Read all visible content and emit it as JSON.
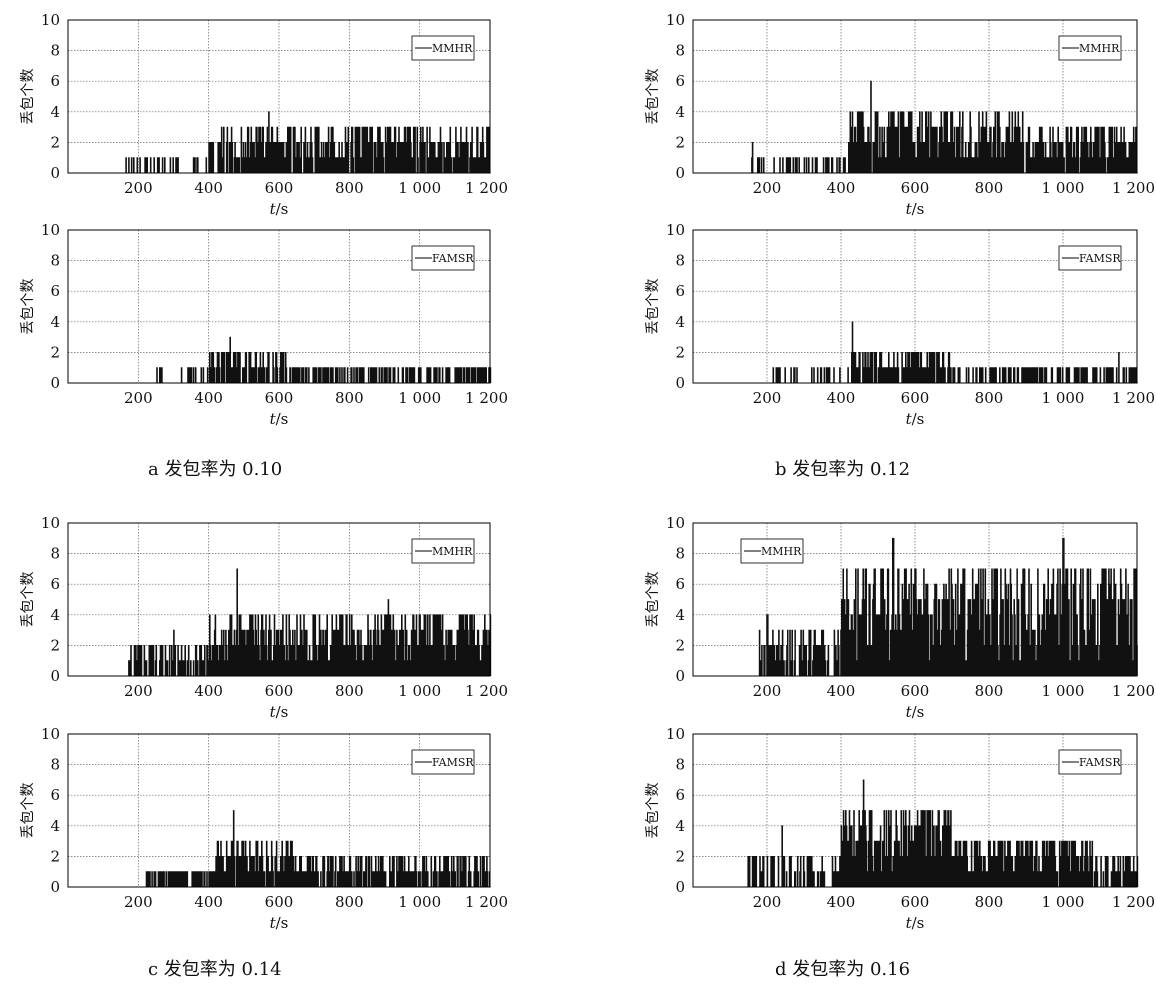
{
  "figure": {
    "captions": [
      "a 发包率为 0.10",
      "b 发包率为 0.12",
      "c 发包率为 0.14",
      "d 发包率为 0.16"
    ]
  },
  "chart_data": [
    {
      "type": "line",
      "panel": "a",
      "series": [
        {
          "name": "MMHR",
          "x_start": 150,
          "x_end": 1200
        }
      ],
      "xlabel": "t/s",
      "ylabel": "丢包个数",
      "ylim": [
        0,
        10
      ],
      "xlim": [
        0,
        1200
      ],
      "xticks": [
        "200",
        "400",
        "600",
        "800",
        "1 000",
        "1 200"
      ],
      "yticks": [
        "0",
        "2",
        "4",
        "6",
        "8",
        "10"
      ],
      "grid": true,
      "legend_position": "top-right",
      "segments": [
        {
          "from": 150,
          "to": 400,
          "density": 0.2,
          "max": 1,
          "peak_at": null
        },
        {
          "from": 400,
          "to": 700,
          "density": 0.75,
          "max": 3,
          "peak_at": 570,
          "peak": 4
        },
        {
          "from": 700,
          "to": 1200,
          "density": 0.75,
          "max": 3,
          "peak_at": null
        }
      ]
    },
    {
      "type": "line",
      "panel": "a",
      "series": [
        {
          "name": "FAMSR",
          "x_start": 250,
          "x_end": 1200
        }
      ],
      "xlabel": "t/s",
      "ylabel": "丢包个数",
      "ylim": [
        0,
        10
      ],
      "xlim": [
        0,
        1200
      ],
      "xticks": [
        "200",
        "400",
        "600",
        "800",
        "1 000",
        "1 200"
      ],
      "yticks": [
        "0",
        "2",
        "4",
        "6",
        "8",
        "10"
      ],
      "grid": true,
      "legend_position": "top-right",
      "segments": [
        {
          "from": 250,
          "to": 400,
          "density": 0.25,
          "max": 1,
          "peak_at": null
        },
        {
          "from": 400,
          "to": 620,
          "density": 0.6,
          "max": 2,
          "peak_at": 460,
          "peak": 3
        },
        {
          "from": 620,
          "to": 1200,
          "density": 0.45,
          "max": 1,
          "peak_at": null
        }
      ]
    },
    {
      "type": "line",
      "panel": "b",
      "series": [
        {
          "name": "MMHR",
          "x_start": 150,
          "x_end": 1200
        }
      ],
      "xlabel": "t/s",
      "ylabel": "丢包个数",
      "ylim": [
        0,
        10
      ],
      "xlim": [
        0,
        1200
      ],
      "xticks": [
        "200",
        "400",
        "600",
        "800",
        "1 000",
        "1 200"
      ],
      "yticks": [
        "0",
        "2",
        "4",
        "6",
        "8",
        "10"
      ],
      "grid": true,
      "legend_position": "top-right",
      "segments": [
        {
          "from": 150,
          "to": 420,
          "density": 0.3,
          "max": 1,
          "peak_at": 160,
          "peak": 2
        },
        {
          "from": 420,
          "to": 900,
          "density": 0.9,
          "max": 4,
          "peak_at": 480,
          "peak": 6
        },
        {
          "from": 900,
          "to": 1200,
          "density": 0.85,
          "max": 3,
          "peak_at": null
        }
      ]
    },
    {
      "type": "line",
      "panel": "b",
      "series": [
        {
          "name": "FAMSR",
          "x_start": 210,
          "x_end": 1200
        }
      ],
      "xlabel": "t/s",
      "ylabel": "丢包个数",
      "ylim": [
        0,
        10
      ],
      "xlim": [
        0,
        1200
      ],
      "xticks": [
        "200",
        "400",
        "600",
        "800",
        "1 000",
        "1 200"
      ],
      "yticks": [
        "0",
        "2",
        "4",
        "6",
        "8",
        "10"
      ],
      "grid": true,
      "legend_position": "top-right",
      "segments": [
        {
          "from": 210,
          "to": 420,
          "density": 0.3,
          "max": 1,
          "peak_at": null
        },
        {
          "from": 420,
          "to": 700,
          "density": 0.7,
          "max": 2,
          "peak_at": 430,
          "peak": 4
        },
        {
          "from": 700,
          "to": 1200,
          "density": 0.4,
          "max": 1,
          "peak_at": 1150,
          "peak": 2
        }
      ]
    },
    {
      "type": "line",
      "panel": "c",
      "series": [
        {
          "name": "MMHR",
          "x_start": 170,
          "x_end": 1200
        }
      ],
      "xlabel": "t/s",
      "ylabel": "丢包个数",
      "ylim": [
        0,
        10
      ],
      "xlim": [
        0,
        1200
      ],
      "xticks": [
        "200",
        "400",
        "600",
        "800",
        "1 000",
        "1 200"
      ],
      "yticks": [
        "0",
        "2",
        "4",
        "6",
        "8",
        "10"
      ],
      "grid": true,
      "legend_position": "top-right",
      "segments": [
        {
          "from": 170,
          "to": 400,
          "density": 0.5,
          "max": 2,
          "peak_at": 300,
          "peak": 3
        },
        {
          "from": 400,
          "to": 800,
          "density": 0.95,
          "max": 4,
          "peak_at": 480,
          "peak": 7
        },
        {
          "from": 800,
          "to": 1200,
          "density": 0.95,
          "max": 4,
          "peak_at": 910,
          "peak": 5
        }
      ]
    },
    {
      "type": "line",
      "panel": "c",
      "series": [
        {
          "name": "FAMSR",
          "x_start": 220,
          "x_end": 1200
        }
      ],
      "xlabel": "t/s",
      "ylabel": "丢包个数",
      "ylim": [
        0,
        10
      ],
      "xlim": [
        0,
        1200
      ],
      "xticks": [
        "200",
        "400",
        "600",
        "800",
        "1 000",
        "1 200"
      ],
      "yticks": [
        "0",
        "2",
        "4",
        "6",
        "8",
        "10"
      ],
      "grid": true,
      "legend_position": "top-right",
      "segments": [
        {
          "from": 220,
          "to": 420,
          "density": 0.5,
          "max": 1,
          "peak_at": null
        },
        {
          "from": 420,
          "to": 650,
          "density": 0.8,
          "max": 3,
          "peak_at": 470,
          "peak": 5
        },
        {
          "from": 650,
          "to": 1200,
          "density": 0.6,
          "max": 2,
          "peak_at": null
        }
      ]
    },
    {
      "type": "line",
      "panel": "d",
      "series": [
        {
          "name": "MMHR",
          "x_start": 175,
          "x_end": 1200
        }
      ],
      "xlabel": "t/s",
      "ylabel": "丢包个数",
      "ylim": [
        0,
        10
      ],
      "xlim": [
        0,
        1200
      ],
      "xticks": [
        "200",
        "400",
        "600",
        "800",
        "1 000",
        "1 200"
      ],
      "yticks": [
        "0",
        "2",
        "4",
        "6",
        "8",
        "10"
      ],
      "grid": true,
      "legend_position": "top-left",
      "segments": [
        {
          "from": 175,
          "to": 400,
          "density": 0.6,
          "max": 3,
          "peak_at": 200,
          "peak": 4
        },
        {
          "from": 400,
          "to": 800,
          "density": 1.0,
          "max": 7,
          "peak_at": 540,
          "peak": 9
        },
        {
          "from": 800,
          "to": 1200,
          "density": 1.0,
          "max": 7,
          "peak_at": 1000,
          "peak": 9
        }
      ]
    },
    {
      "type": "line",
      "panel": "d",
      "series": [
        {
          "name": "FAMSR",
          "x_start": 140,
          "x_end": 1200
        }
      ],
      "xlabel": "t/s",
      "ylabel": "丢包个数",
      "ylim": [
        0,
        10
      ],
      "xlim": [
        0,
        1200
      ],
      "xticks": [
        "200",
        "400",
        "600",
        "800",
        "1 000",
        "1 200"
      ],
      "yticks": [
        "0",
        "2",
        "4",
        "6",
        "8",
        "10"
      ],
      "grid": true,
      "legend_position": "top-right",
      "segments": [
        {
          "from": 140,
          "to": 400,
          "density": 0.4,
          "max": 2,
          "peak_at": 240,
          "peak": 4
        },
        {
          "from": 400,
          "to": 700,
          "density": 0.95,
          "max": 5,
          "peak_at": 460,
          "peak": 7
        },
        {
          "from": 700,
          "to": 1080,
          "density": 0.95,
          "max": 3,
          "peak_at": null
        },
        {
          "from": 1080,
          "to": 1200,
          "density": 0.5,
          "max": 2,
          "peak_at": null
        }
      ]
    }
  ]
}
